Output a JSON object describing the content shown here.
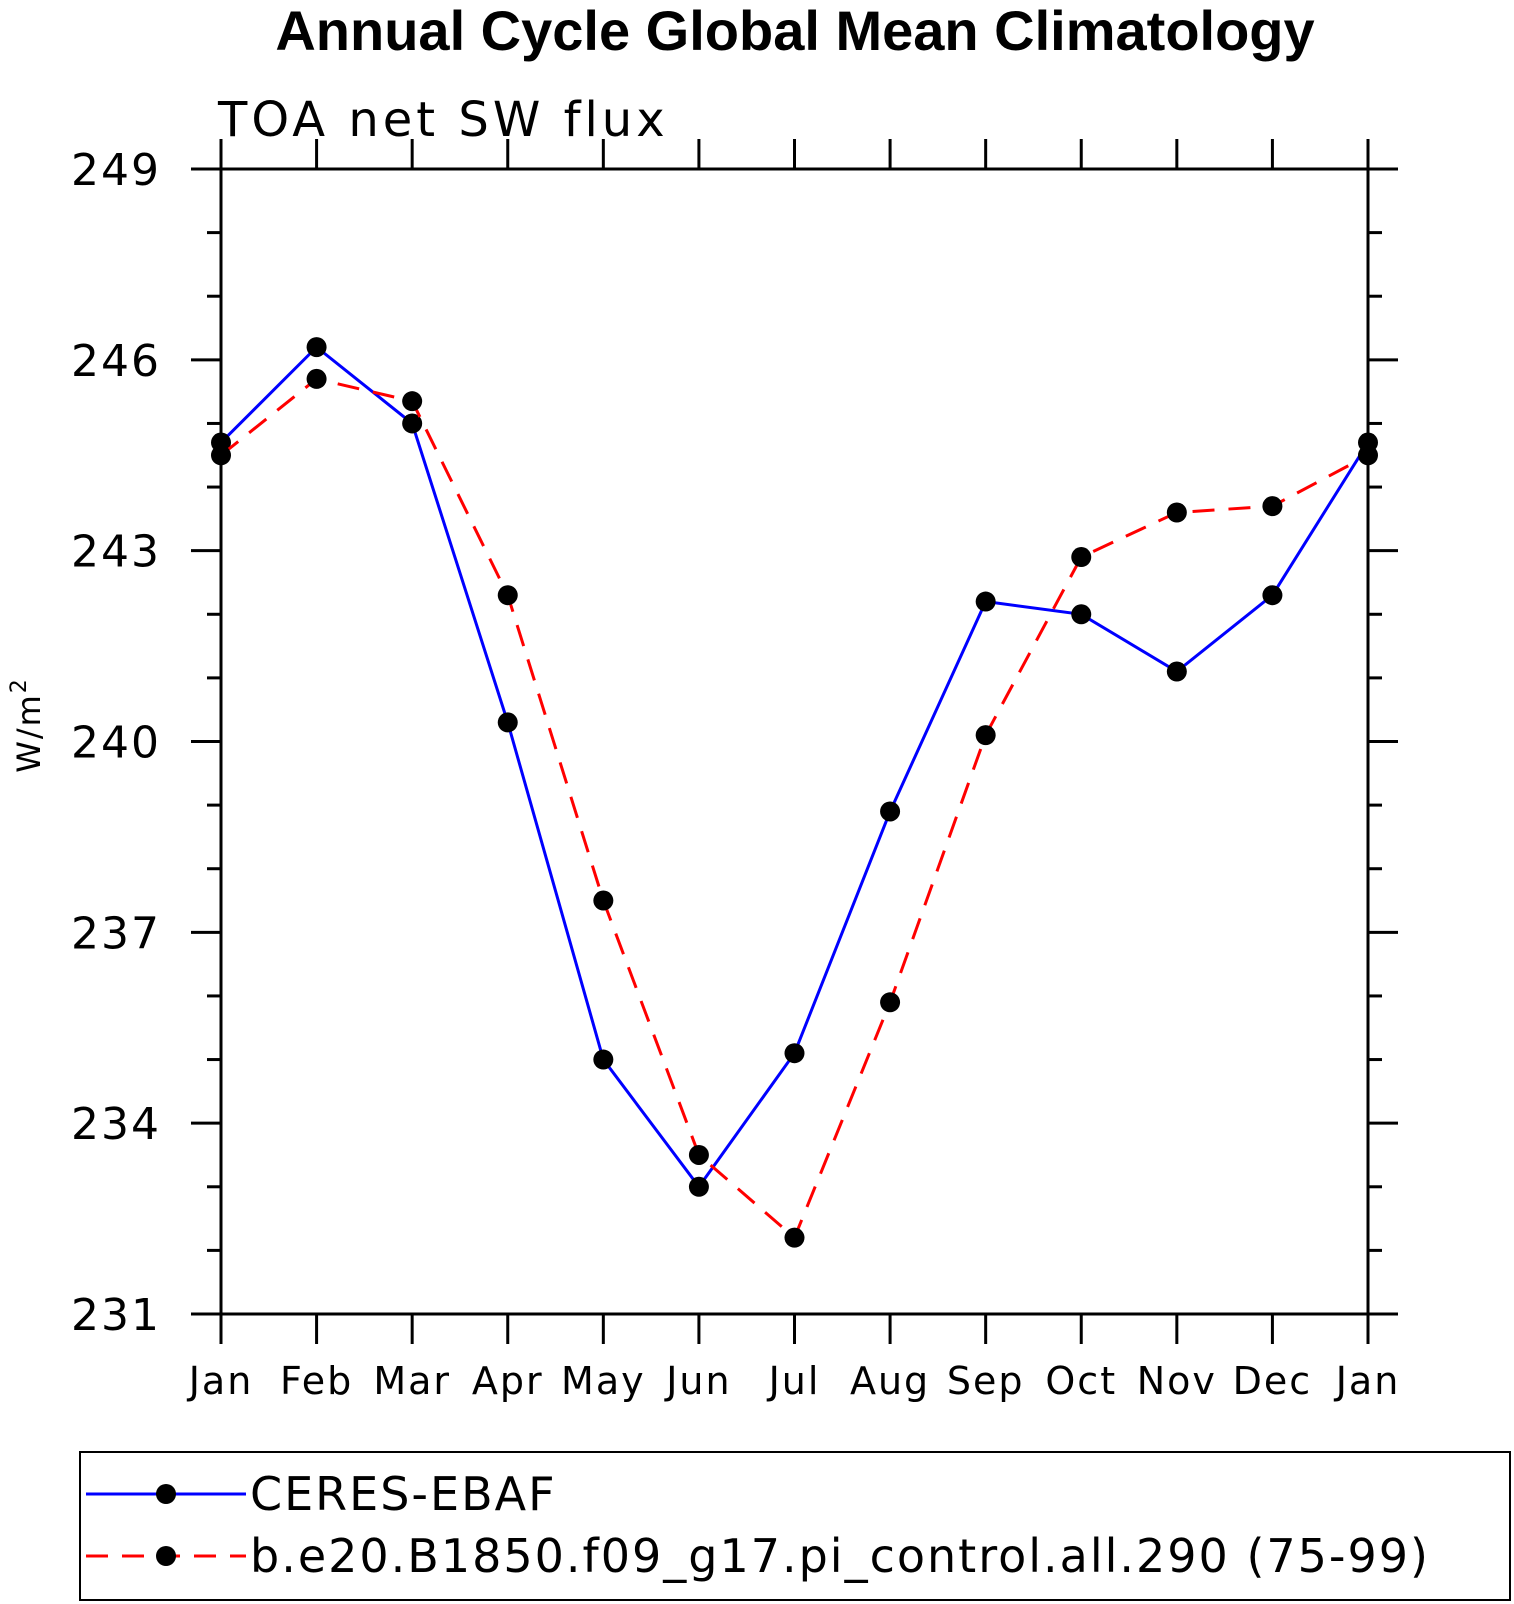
{
  "chart_data": {
    "type": "line",
    "title": "Annual Cycle Global Mean Climatology",
    "subtitle": "TOA net SW flux",
    "ylabel": "W/m",
    "ylabel_superscript": "2",
    "xlabel": "",
    "categories": [
      "Jan",
      "Feb",
      "Mar",
      "Apr",
      "May",
      "Jun",
      "Jul",
      "Aug",
      "Sep",
      "Oct",
      "Nov",
      "Dec",
      "Jan"
    ],
    "ylim": [
      231,
      249
    ],
    "yticks": [
      231,
      234,
      237,
      240,
      243,
      246,
      249
    ],
    "ytick_labels": [
      "231",
      "234",
      "237",
      "240",
      "243",
      "246",
      "249"
    ],
    "grid": false,
    "legend_position": "bottom",
    "series": [
      {
        "name": "CERES-EBAF",
        "color": "#0000ff",
        "line_style": "solid",
        "marker": "filled-circle",
        "values": [
          244.7,
          246.2,
          245.0,
          240.3,
          235.0,
          233.0,
          235.1,
          238.9,
          242.2,
          242.0,
          241.1,
          242.3,
          244.7
        ]
      },
      {
        "name": "b.e20.B1850.f09_g17.pi_control.all.290 (75-99)",
        "color": "#ff0000",
        "line_style": "dashed",
        "marker": "filled-circle",
        "values": [
          244.5,
          245.7,
          245.35,
          242.3,
          237.5,
          233.5,
          232.2,
          235.9,
          240.1,
          242.9,
          243.6,
          243.7,
          244.5
        ]
      }
    ]
  }
}
